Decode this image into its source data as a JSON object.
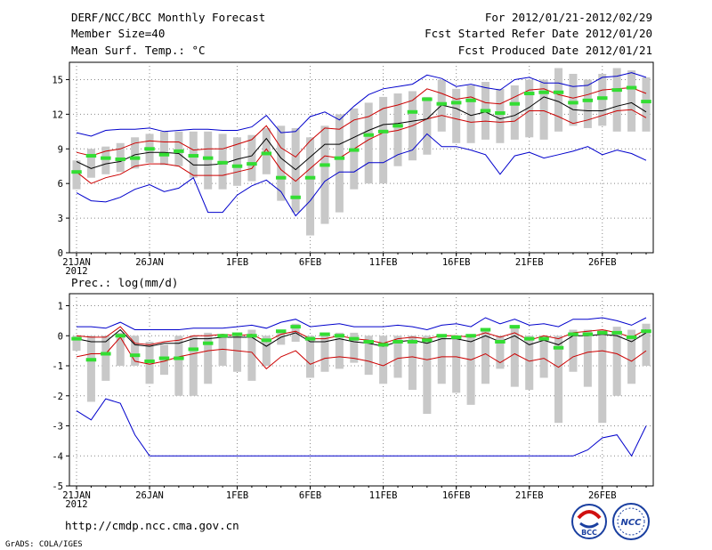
{
  "header": {
    "title": "DERF/NCC/BCC Monthly Forecast",
    "member_size": "Member Size=40",
    "variable": "Mean Surf. Temp.: °C",
    "period": "For 2012/01/21-2012/02/29",
    "started": "Fcst Started Refer Date 2012/01/20",
    "produced": "Fcst Produced Date 2012/01/21"
  },
  "footer": {
    "url": "http://cmdp.ncc.cma.gov.cn",
    "credit": "GrADS: COLA/IGES",
    "logo_bcc_text": "BCC",
    "logo_ncc_text": "NCC"
  },
  "colors": {
    "box": "#c8c8c8",
    "mean": "#000000",
    "std": "#cc0000",
    "minmax": "#0000cc",
    "ensemble": "#33dd33"
  },
  "chart_data": [
    {
      "type": "box-ensemble",
      "title": "Mean Surf. Temp.: °C",
      "y_min": 0,
      "y_max": 16.5,
      "y_ticks": [
        0,
        3,
        6,
        9,
        12,
        15
      ],
      "y_tick_labels": [
        "0",
        "3",
        "6",
        "9",
        "12",
        "15"
      ],
      "x_tick_days": [
        0,
        5,
        11,
        16,
        21,
        26,
        31,
        36
      ],
      "x_tick_labels": [
        "21JAN",
        "26JAN",
        "1FEB",
        "6FEB",
        "11FEB",
        "16FEB",
        "21FEB",
        "26FEB"
      ],
      "x_year_label": "2012",
      "days": 40,
      "box_low": [
        5.5,
        6.5,
        6.8,
        7,
        7.3,
        7.8,
        7.6,
        7.5,
        6.5,
        5.5,
        5.5,
        5.8,
        6.2,
        6.8,
        4.5,
        3.5,
        1.5,
        2.5,
        3.5,
        5.5,
        6,
        6,
        7.5,
        8,
        8.5,
        10.5,
        9.5,
        9.5,
        9.8,
        9.5,
        9.8,
        10,
        9.8,
        10.5,
        11,
        10.8,
        11,
        10.5,
        10.5,
        10.5
      ],
      "box_high": [
        8,
        9,
        9.2,
        9.5,
        10,
        10.3,
        10.5,
        10.5,
        10.5,
        10.5,
        10.3,
        10,
        10.2,
        10.8,
        11,
        10.8,
        10,
        11,
        12,
        12.5,
        13,
        13.5,
        13.8,
        14,
        13.5,
        15,
        14.2,
        14.5,
        14.8,
        14.2,
        14.5,
        15,
        15,
        16,
        15.5,
        15,
        15.5,
        16,
        15.8,
        15.2
      ],
      "ens": [
        7,
        8.4,
        8.2,
        8.1,
        8.2,
        9,
        8.5,
        8.8,
        8.4,
        8.2,
        7.8,
        7.5,
        7.7,
        8.6,
        6.5,
        4.8,
        6.5,
        7.6,
        8.2,
        8.9,
        10.2,
        10.5,
        11,
        12.2,
        13.3,
        12.9,
        13,
        13.2,
        12.3,
        12.1,
        12.9,
        13.8,
        13.9,
        13.9,
        13,
        13.2,
        13.4,
        14.1,
        14.3,
        13.1
      ],
      "series": [
        {
          "name": "mean",
          "values": [
            7.9,
            7.3,
            7.7,
            7.9,
            8.5,
            8.7,
            8.7,
            8.6,
            7.6,
            7.6,
            7.7,
            8.1,
            8.4,
            9.9,
            8.2,
            7.2,
            8.3,
            9.4,
            9.4,
            10.0,
            10.6,
            11.1,
            11.2,
            11.4,
            11.6,
            12.8,
            12.5,
            11.9,
            12.2,
            11.6,
            11.9,
            12.6,
            13.5,
            13.1,
            12.4,
            12.3,
            12.3,
            12.7,
            13.0,
            12.2
          ]
        },
        {
          "name": "plus_std",
          "values": [
            8.7,
            8.4,
            8.8,
            9,
            9.5,
            9.7,
            9.6,
            9.6,
            8.9,
            9,
            9,
            9.4,
            9.8,
            11,
            9.1,
            8.3,
            9.7,
            10.8,
            10.7,
            11.5,
            11.8,
            12.5,
            12.8,
            13.2,
            14.2,
            13.8,
            13.3,
            13.5,
            13,
            12.9,
            13.5,
            14.1,
            14.2,
            13.7,
            13.4,
            13.7,
            14.1,
            14.2,
            14.3,
            13.8
          ]
        },
        {
          "name": "minus_std",
          "values": [
            7,
            6,
            6.5,
            6.8,
            7.5,
            7.7,
            7.7,
            7.5,
            6.7,
            6.7,
            6.7,
            7,
            7.3,
            9,
            7.2,
            6.2,
            7.3,
            8.4,
            8.2,
            9,
            9.8,
            10.4,
            10.6,
            11,
            11.6,
            11.9,
            11.6,
            11.3,
            11.4,
            11.3,
            11.4,
            12.3,
            12.3,
            11.8,
            11.2,
            11.5,
            11.9,
            12.3,
            12.4,
            11.7
          ]
        },
        {
          "name": "maximum",
          "values": [
            10.4,
            10.1,
            10.6,
            10.7,
            10.7,
            10.8,
            10.5,
            10.6,
            10.7,
            10.7,
            10.6,
            10.6,
            10.9,
            11.9,
            10.4,
            10.5,
            11.8,
            12.2,
            11.5,
            12.7,
            13.7,
            14.2,
            14.4,
            14.6,
            15.4,
            15.1,
            14.4,
            14.6,
            14.3,
            14.1,
            15,
            15.2,
            14.7,
            14.7,
            14.4,
            14.5,
            15.2,
            15.3,
            15.6,
            15.2
          ]
        },
        {
          "name": "minimum",
          "values": [
            5.2,
            4.5,
            4.4,
            4.8,
            5.5,
            5.9,
            5.3,
            5.6,
            6.5,
            3.5,
            3.5,
            5,
            5.8,
            6.3,
            5.3,
            3.2,
            4.5,
            6.2,
            7,
            7,
            7.8,
            7.8,
            8.5,
            8.9,
            10.3,
            9.2,
            9.2,
            8.9,
            8.5,
            6.8,
            8.4,
            8.7,
            8.2,
            8.5,
            8.8,
            9.2,
            8.5,
            8.9,
            8.6,
            8
          ]
        }
      ]
    },
    {
      "type": "box-ensemble",
      "title": "Prec.: log(mm/d)",
      "y_min": -5,
      "y_max": 1.4,
      "y_ticks": [
        -5,
        -4,
        -3,
        -2,
        -1,
        0,
        1
      ],
      "y_tick_labels": [
        "-5",
        "-4",
        "-3",
        "-2",
        "-1",
        "0",
        "1"
      ],
      "x_tick_days": [
        0,
        5,
        11,
        16,
        21,
        26,
        31,
        36
      ],
      "x_tick_labels": [
        "21JAN",
        "26JAN",
        "1FEB",
        "6FEB",
        "11FEB",
        "16FEB",
        "21FEB",
        "26FEB"
      ],
      "x_year_label": "2012",
      "days": 40,
      "box_low": [
        -0.5,
        -2.2,
        -1.5,
        -1,
        -1,
        -1.6,
        -1.3,
        -2,
        -2,
        -1.6,
        -1,
        -1.2,
        -1.5,
        -1,
        -0.3,
        -0.2,
        -1.4,
        -1.2,
        -1.1,
        -0.9,
        -1.3,
        -1.6,
        -1.4,
        -1.8,
        -2.6,
        -1.6,
        -1.9,
        -2.3,
        -1.6,
        -1.1,
        -1.7,
        -1.8,
        -1.4,
        -2.9,
        -1.2,
        -1.7,
        -2.9,
        -2,
        -1.6,
        -1
      ],
      "box_high": [
        0,
        0,
        0,
        0.1,
        0,
        -0.2,
        -0.3,
        0,
        0,
        0.1,
        0,
        0,
        0.2,
        0,
        0.2,
        0.4,
        0,
        0.1,
        0.1,
        0.1,
        0,
        0,
        0,
        0,
        0,
        0,
        0,
        0,
        0.2,
        0,
        0.3,
        0,
        0,
        0,
        0.2,
        0.2,
        0.2,
        0.3,
        0.2,
        0.4
      ],
      "ens": [
        -0.1,
        -0.8,
        -0.6,
        0,
        -0.65,
        -0.85,
        -0.75,
        -0.75,
        -0.45,
        -0.25,
        0,
        0.05,
        0,
        -0.15,
        0.15,
        0.3,
        -0.1,
        0.05,
        0,
        -0.1,
        -0.2,
        -0.3,
        -0.2,
        -0.2,
        -0.15,
        0,
        -0.05,
        0,
        0.2,
        -0.2,
        0.3,
        -0.1,
        -0.1,
        -0.4,
        0.05,
        0.05,
        0.1,
        0.1,
        -0.05,
        0.15
      ],
      "series": [
        {
          "name": "mean",
          "values": [
            -0.1,
            -0.2,
            -0.2,
            0.2,
            -0.3,
            -0.35,
            -0.25,
            -0.25,
            -0.1,
            -0.1,
            -0.05,
            -0.05,
            -0.05,
            -0.35,
            -0.05,
            0.1,
            -0.2,
            -0.2,
            -0.1,
            -0.2,
            -0.25,
            -0.35,
            -0.2,
            -0.15,
            -0.25,
            -0.1,
            -0.1,
            -0.2,
            0,
            -0.2,
            0,
            -0.3,
            -0.15,
            -0.3,
            0,
            0,
            0.05,
            0,
            -0.2,
            0.1
          ]
        },
        {
          "name": "plus_std",
          "values": [
            0,
            -0.05,
            -0.05,
            0.3,
            -0.25,
            -0.3,
            -0.2,
            -0.15,
            0,
            0,
            0.05,
            0,
            0.05,
            -0.2,
            0.05,
            0.15,
            -0.1,
            -0.1,
            0,
            -0.1,
            -0.15,
            -0.25,
            -0.1,
            -0.05,
            -0.1,
            0,
            0,
            -0.05,
            0.1,
            -0.05,
            0.1,
            -0.15,
            0,
            -0.1,
            0.1,
            0.15,
            0.2,
            0.1,
            -0.05,
            0.2
          ]
        },
        {
          "name": "minus_std",
          "values": [
            -0.7,
            -0.6,
            -0.6,
            -0.05,
            -0.85,
            -0.95,
            -0.85,
            -0.7,
            -0.6,
            -0.5,
            -0.45,
            -0.5,
            -0.55,
            -1.1,
            -0.7,
            -0.5,
            -0.95,
            -0.75,
            -0.7,
            -0.75,
            -0.85,
            -1,
            -0.75,
            -0.7,
            -0.8,
            -0.7,
            -0.7,
            -0.8,
            -0.6,
            -0.9,
            -0.6,
            -0.85,
            -0.75,
            -1.05,
            -0.7,
            -0.55,
            -0.5,
            -0.6,
            -0.85,
            -0.5
          ]
        },
        {
          "name": "maximum",
          "values": [
            0.3,
            0.3,
            0.25,
            0.45,
            0.2,
            0.2,
            0.2,
            0.2,
            0.25,
            0.25,
            0.25,
            0.3,
            0.35,
            0.25,
            0.45,
            0.55,
            0.3,
            0.35,
            0.4,
            0.3,
            0.3,
            0.3,
            0.35,
            0.3,
            0.2,
            0.35,
            0.4,
            0.3,
            0.6,
            0.4,
            0.55,
            0.35,
            0.4,
            0.3,
            0.55,
            0.55,
            0.6,
            0.5,
            0.35,
            0.6
          ]
        },
        {
          "name": "minimum",
          "values": [
            -2.5,
            -2.8,
            -2.1,
            -2.25,
            -3.3,
            -4,
            -4,
            -4,
            -4,
            -4,
            -4,
            -4,
            -4,
            -4,
            -4,
            -4,
            -4,
            -4,
            -4,
            -4,
            -4,
            -4,
            -4,
            -4,
            -4,
            -4,
            -4,
            -4,
            -4,
            -4,
            -4,
            -4,
            -4,
            -4,
            -4,
            -3.8,
            -3.4,
            -3.3,
            -4,
            -3
          ]
        }
      ]
    }
  ]
}
